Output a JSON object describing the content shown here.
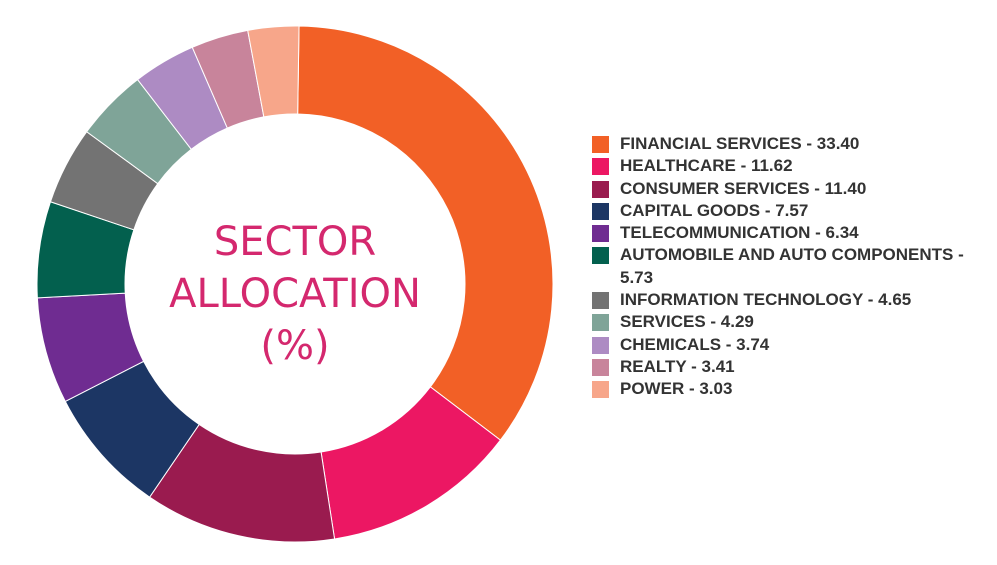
{
  "chart_data": {
    "type": "pie",
    "title_lines": [
      "SECTOR",
      "ALLOCATION",
      "(%)"
    ],
    "slices": [
      {
        "label": "FINANCIAL SERVICES - 33.40",
        "value": 33.4,
        "color": "#f26026"
      },
      {
        "label": "HEALTHCARE - 11.62",
        "value": 11.62,
        "color": "#ec1763"
      },
      {
        "label": "CONSUMER SERVICES - 11.40",
        "value": 11.4,
        "color": "#9a1b4f"
      },
      {
        "label": "CAPITAL GOODS - 7.57",
        "value": 7.57,
        "color": "#1c3664"
      },
      {
        "label": "TELECOMMUNICATION - 6.34",
        "value": 6.34,
        "color": "#6f2c91"
      },
      {
        "label": "AUTOMOBILE AND AUTO COMPONENTS - 5.73",
        "value": 5.73,
        "color": "#03604e"
      },
      {
        "label": "INFORMATION TECHNOLOGY - 4.65",
        "value": 4.65,
        "color": "#737373"
      },
      {
        "label": "SERVICES - 4.29",
        "value": 4.29,
        "color": "#7fa498"
      },
      {
        "label": "CHEMICALS - 3.74",
        "value": 3.74,
        "color": "#ad8bc3"
      },
      {
        "label": "REALTY - 3.41",
        "value": 3.41,
        "color": "#c8849b"
      },
      {
        "label": "POWER - 3.03",
        "value": 3.03,
        "color": "#f7a68a"
      }
    ],
    "legend_position": "right"
  }
}
